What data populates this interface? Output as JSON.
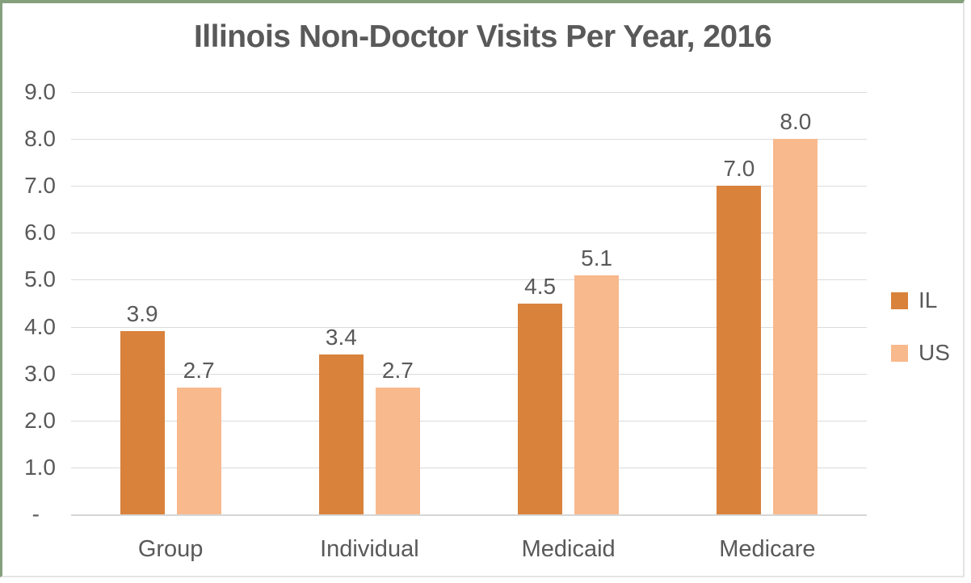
{
  "chart_data": {
    "type": "bar",
    "title": "Illinois Non-Doctor Visits Per Year, 2016",
    "categories": [
      "Group",
      "Individual",
      "Medicaid",
      "Medicare"
    ],
    "series": [
      {
        "name": "IL",
        "color": "#D9823C",
        "values": [
          3.9,
          3.4,
          4.5,
          7.0
        ],
        "data_labels": [
          "3.9",
          "3.4",
          "4.5",
          "7.0"
        ]
      },
      {
        "name": "US",
        "color": "#F8B98D",
        "values": [
          2.7,
          2.7,
          5.1,
          8.0
        ],
        "data_labels": [
          "2.7",
          "2.7",
          "5.1",
          "8.0"
        ]
      }
    ],
    "xlabel": "",
    "ylabel": "",
    "ylim": [
      0,
      9
    ],
    "y_tick_interval": 1,
    "y_tick_labels": [
      "9.0",
      "8.0",
      "7.0",
      "6.0",
      "5.0",
      "4.0",
      "3.0",
      "2.0",
      "1.0",
      "-"
    ],
    "grid": true,
    "legend_position": "right"
  },
  "style": {
    "background": "#FFFFFF",
    "text_color": "#595959",
    "gridline_color": "#DBDBDB",
    "axis_line_color": "#D6D6D6",
    "frame_top_left_color": "#84A07C",
    "frame_bottom_right_color": "#E3E3E3"
  }
}
